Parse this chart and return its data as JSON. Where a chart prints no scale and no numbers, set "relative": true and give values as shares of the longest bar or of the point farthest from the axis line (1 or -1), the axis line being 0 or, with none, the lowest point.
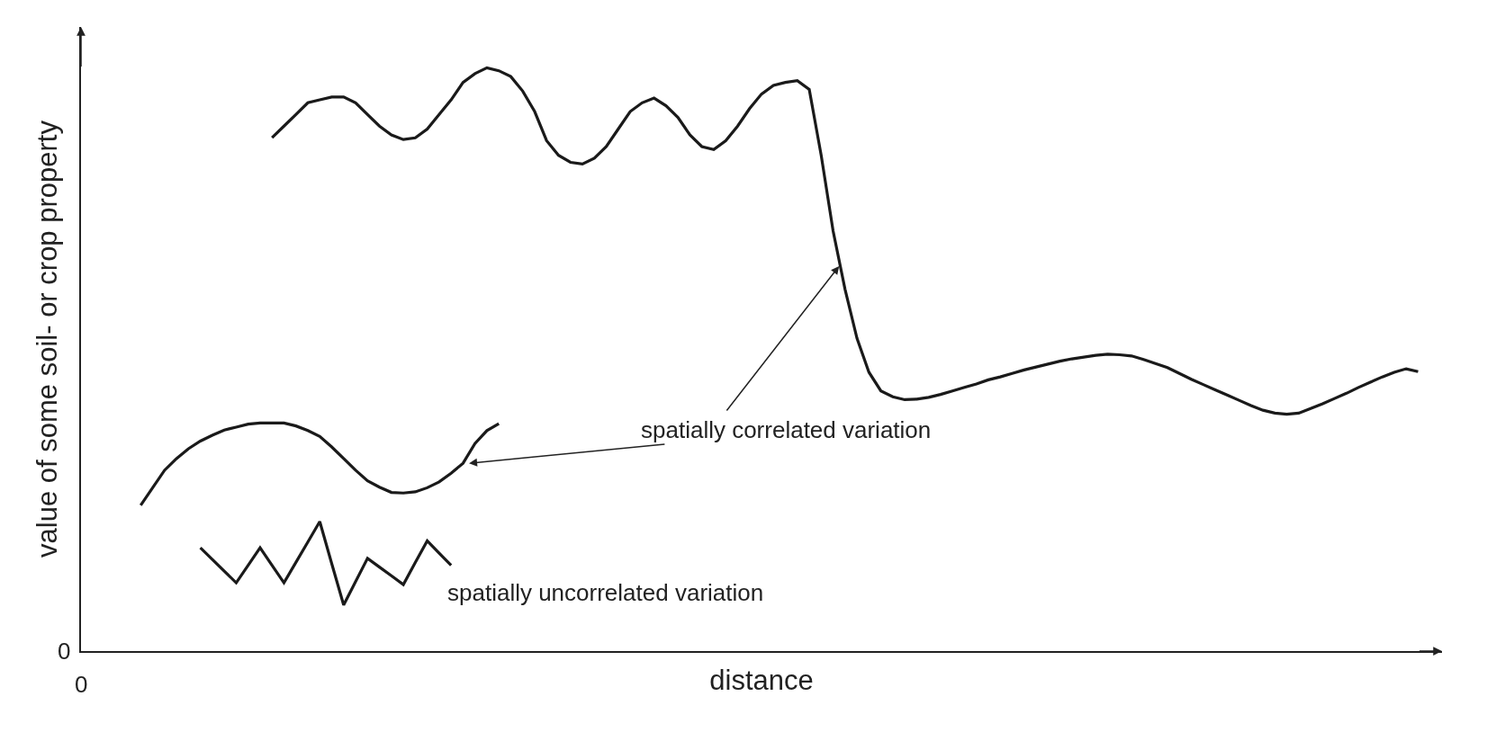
{
  "chart_data": {
    "type": "line",
    "relative": true,
    "xlabel": "distance",
    "ylabel": "value of some soil- or crop property",
    "categories": [
      null,
      null,
      null,
      null,
      null,
      null,
      null,
      null,
      null,
      null,
      null,
      null,
      null,
      null,
      null,
      null,
      null,
      null,
      null,
      null,
      null,
      null,
      null,
      null,
      null,
      null,
      null,
      null,
      null,
      null,
      null,
      null,
      null,
      null,
      null,
      null,
      null,
      null,
      null,
      null,
      null,
      null,
      null,
      null,
      null,
      null,
      null,
      null,
      null,
      null,
      null,
      null,
      null,
      null,
      null,
      null,
      null,
      null,
      null,
      null,
      null,
      null,
      null,
      null,
      null,
      null,
      null,
      null,
      null,
      null,
      null,
      null,
      null,
      null,
      null,
      null,
      null,
      null,
      null,
      null,
      null,
      null,
      null,
      null,
      null,
      null,
      null,
      null,
      null,
      null,
      null,
      null,
      null,
      null,
      null,
      null,
      null,
      null,
      null,
      null,
      null,
      null,
      null,
      null,
      null,
      null,
      null,
      null,
      null,
      null,
      null,
      null,
      null
    ],
    "series": [
      {
        "color": "#1a1a1a",
        "values": [
          null,
          null,
          null,
          null,
          null,
          null,
          null,
          null,
          null,
          null,
          null,
          null,
          null,
          null,
          null,
          null,
          0.88,
          0.9,
          0.92,
          0.94,
          0.945,
          0.95,
          0.95,
          0.94,
          0.92,
          0.9,
          0.885,
          0.877,
          0.88,
          0.895,
          0.92,
          0.945,
          0.975,
          0.99,
          1,
          0.995,
          0.985,
          0.96,
          0.925,
          0.875,
          0.85,
          0.838,
          0.835,
          0.845,
          0.865,
          0.895,
          0.925,
          0.94,
          0.948,
          0.935,
          0.915,
          0.885,
          0.865,
          0.86,
          0.875,
          0.9,
          0.93,
          0.955,
          0.97,
          0.975,
          0.978,
          0.963,
          0.85,
          0.72,
          0.62,
          0.536,
          0.478,
          0.446,
          0.436,
          0.431,
          0.432,
          0.435,
          0.44,
          0.446,
          0.452,
          0.458,
          0.465,
          0.47,
          0.476,
          0.482,
          0.487,
          0.492,
          0.497,
          0.501,
          0.504,
          0.507,
          0.509,
          0.508,
          0.506,
          0.5,
          0.493,
          0.486,
          0.476,
          0.466,
          0.457,
          0.448,
          0.439,
          0.43,
          0.421,
          0.413,
          0.408,
          0.406,
          0.408,
          0.416,
          0.424,
          0.433,
          0.442,
          0.452,
          0.461,
          0.47,
          0.478,
          0.484,
          0.479
        ]
      },
      {
        "color": "#1a1a1a",
        "values": [
          null,
          null,
          null,
          null,
          null,
          0.25,
          0.28,
          0.31,
          0.33,
          0.347,
          0.36,
          0.37,
          0.379,
          0.384,
          0.389,
          0.391,
          0.391,
          0.391,
          0.386,
          0.378,
          0.368,
          0.35,
          0.33,
          0.31,
          0.292,
          0.281,
          0.272,
          0.271,
          0.273,
          0.28,
          0.29,
          0.305,
          0.322,
          0.356,
          0.378,
          0.39,
          null,
          null,
          null,
          null,
          null,
          null,
          null,
          null,
          null,
          null,
          null,
          null,
          null,
          null,
          null,
          null,
          null,
          null,
          null,
          null,
          null,
          null,
          null,
          null,
          null,
          null,
          null,
          null,
          null,
          null,
          null,
          null,
          null,
          null,
          null,
          null,
          null,
          null,
          null,
          null,
          null,
          null,
          null,
          null,
          null,
          null,
          null,
          null,
          null,
          null,
          null,
          null,
          null,
          null,
          null,
          null,
          null,
          null,
          null,
          null,
          null,
          null,
          null,
          null,
          null,
          null,
          null,
          null,
          null,
          null,
          null,
          null,
          null,
          null,
          null,
          null,
          null
        ]
      },
      {
        "name": "spatially uncorrelated variation",
        "color": "#1a1a1a",
        "values": [
          null,
          null,
          null,
          null,
          null,
          null,
          null,
          null,
          null,
          null,
          0.177,
          0.157,
          0.137,
          0.117,
          0.147,
          0.177,
          0.147,
          0.117,
          0.152,
          0.187,
          0.222,
          0.15,
          0.079,
          0.119,
          0.159,
          0.144,
          0.129,
          0.114,
          0.152,
          0.189,
          0.168,
          0.147,
          null,
          null,
          null,
          null,
          null,
          null,
          null,
          null,
          null,
          null,
          null,
          null,
          null,
          null,
          null,
          null,
          null,
          null,
          null,
          null,
          null,
          null,
          null,
          null,
          null,
          null,
          null,
          null,
          null,
          null,
          null,
          null,
          null,
          null,
          null,
          null,
          null,
          null,
          null,
          null,
          null,
          null,
          null,
          null,
          null,
          null,
          null,
          null,
          null,
          null,
          null,
          null,
          null,
          null,
          null,
          null,
          null,
          null,
          null,
          null,
          null,
          null,
          null,
          null,
          null,
          null,
          null,
          null,
          null,
          null,
          null,
          null,
          null,
          null,
          null,
          null,
          null,
          null,
          null,
          null,
          null
        ]
      }
    ],
    "annotations": [
      "spatially correlated variation",
      "0",
      "0"
    ],
    "line_style": "solid",
    "marker": "none",
    "legend": false
  }
}
